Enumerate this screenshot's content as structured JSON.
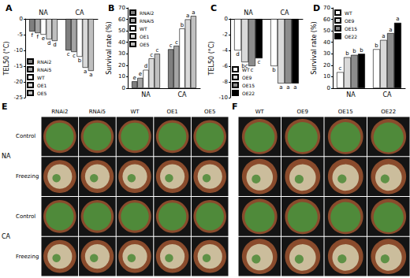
{
  "chart_data": [
    {
      "type": "bar",
      "title": "A",
      "categories": [
        "NA",
        "CA"
      ],
      "y_label": "TEL50 (°C)",
      "ylim": [
        -25,
        0
      ],
      "yticks": [
        -25,
        -20,
        -15,
        -10,
        -5,
        0
      ],
      "legend": "bottom-left",
      "series": [
        {
          "name": "RNAi2",
          "color": "#7f7f7f",
          "values": [
            -4,
            -10
          ],
          "letters": [
            "f",
            "c"
          ]
        },
        {
          "name": "RNAi5",
          "color": "#a5a5a5",
          "values": [
            -4.5,
            -10.5
          ],
          "letters": [
            "f",
            "c"
          ]
        },
        {
          "name": "WT",
          "color": "#ffffff",
          "values": [
            -5,
            -12
          ],
          "letters": [
            "e",
            "b"
          ]
        },
        {
          "name": "OE1",
          "color": "#d9d9d9",
          "values": [
            -6.5,
            -15.5
          ],
          "letters": [
            "d",
            "a"
          ]
        },
        {
          "name": "OE5",
          "color": "#bfbfbf",
          "values": [
            -7,
            -16.5
          ],
          "letters": [
            "d",
            "a"
          ]
        }
      ]
    },
    {
      "type": "bar",
      "title": "B",
      "categories": [
        "NA",
        "CA"
      ],
      "y_label": "Survival rate (%)",
      "ylim": [
        0,
        70
      ],
      "yticks": [
        0,
        10,
        20,
        30,
        40,
        50,
        60,
        70
      ],
      "legend": "top-left",
      "series": [
        {
          "name": "RNAi2",
          "color": "#7f7f7f",
          "values": [
            6,
            34
          ],
          "letters": [
            "e",
            "c"
          ]
        },
        {
          "name": "RNAi5",
          "color": "#a5a5a5",
          "values": [
            9,
            37
          ],
          "letters": [
            "e",
            "c"
          ]
        },
        {
          "name": "WT",
          "color": "#ffffff",
          "values": [
            16,
            52
          ],
          "letters": [
            "d",
            "b"
          ]
        },
        {
          "name": "OE1",
          "color": "#d9d9d9",
          "values": [
            26,
            60
          ],
          "letters": [
            "c",
            "a"
          ]
        },
        {
          "name": "OE5",
          "color": "#bfbfbf",
          "values": [
            30,
            63
          ],
          "letters": [
            "c",
            "a"
          ]
        }
      ]
    },
    {
      "type": "bar",
      "title": "C",
      "categories": [
        "NA",
        "CA"
      ],
      "y_label": "TEL50 (°C)",
      "ylim": [
        -10,
        0
      ],
      "yticks": [
        -10,
        -8,
        -6,
        -4,
        -2,
        0
      ],
      "legend": "bottom-left",
      "series": [
        {
          "name": "WT",
          "color": "#ffffff",
          "values": [
            -4,
            -6
          ],
          "letters": [
            "d",
            "b"
          ]
        },
        {
          "name": "OE9",
          "color": "#d9d9d9",
          "values": [
            -5.5,
            -8.2
          ],
          "letters": [
            "bc",
            "a"
          ]
        },
        {
          "name": "OE15",
          "color": "#8c8c8c",
          "values": [
            -6,
            -8.2
          ],
          "letters": [
            "c",
            "a"
          ]
        },
        {
          "name": "OE22",
          "color": "#000000",
          "values": [
            -5,
            -8.2
          ],
          "letters": [
            "c",
            "a"
          ]
        }
      ]
    },
    {
      "type": "bar",
      "title": "D",
      "categories": [
        "NA",
        "CA"
      ],
      "y_label": "Survival rate (%)",
      "ylim": [
        0,
        70
      ],
      "yticks": [
        0,
        10,
        20,
        30,
        40,
        50,
        60,
        70
      ],
      "legend": "top-left",
      "series": [
        {
          "name": "WT",
          "color": "#ffffff",
          "values": [
            14,
            34
          ],
          "letters": [
            "c",
            "b"
          ]
        },
        {
          "name": "OE9",
          "color": "#d9d9d9",
          "values": [
            27,
            42
          ],
          "letters": [
            "b",
            "a"
          ]
        },
        {
          "name": "OE15",
          "color": "#8c8c8c",
          "values": [
            29,
            48
          ],
          "letters": [
            "b",
            "a"
          ]
        },
        {
          "name": "OE22",
          "color": "#000000",
          "values": [
            30,
            57
          ],
          "letters": [
            "b",
            "a"
          ]
        }
      ]
    }
  ],
  "photo_panels": [
    {
      "title": "E",
      "columns": [
        "RNAi2",
        "RNAi5",
        "WT",
        "OE1",
        "OE5"
      ],
      "groups": [
        {
          "label": "NA",
          "rows": [
            "Control",
            "Freezing"
          ]
        },
        {
          "label": "CA",
          "rows": [
            "Control",
            "Freezing"
          ]
        }
      ]
    },
    {
      "title": "F",
      "columns": [
        "WT",
        "OE9",
        "OE15",
        "OE22"
      ]
    }
  ]
}
